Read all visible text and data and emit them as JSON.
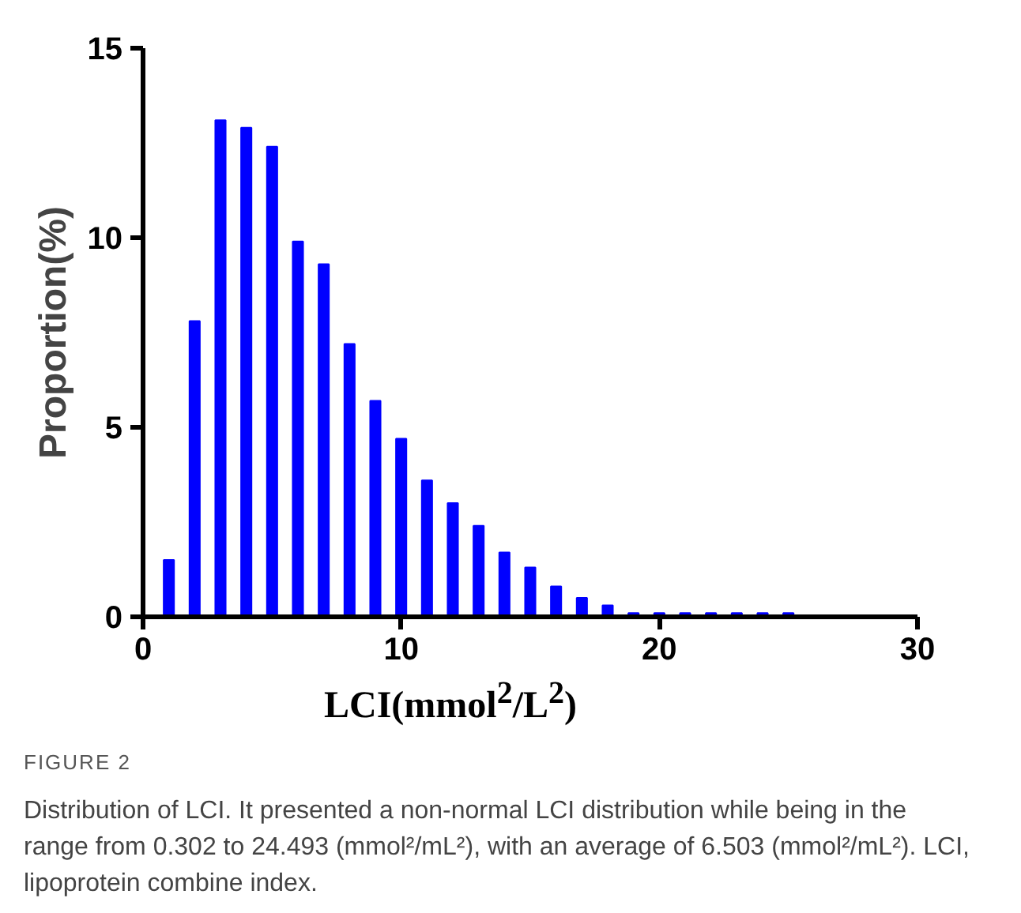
{
  "chart_data": {
    "type": "bar",
    "xlabel": "LCI(mmol$^{2}$/L$^{2}$)",
    "ylabel": "Proportion(%)",
    "x": [
      1,
      2,
      3,
      4,
      5,
      6,
      7,
      8,
      9,
      10,
      11,
      12,
      13,
      14,
      15,
      16,
      17,
      18,
      19,
      20,
      21,
      22,
      23,
      24,
      25
    ],
    "values": [
      1.5,
      7.8,
      13.1,
      12.9,
      12.4,
      9.9,
      9.3,
      7.2,
      5.7,
      4.7,
      3.6,
      3.0,
      2.4,
      1.7,
      1.3,
      0.8,
      0.5,
      0.3,
      0.1,
      0.1,
      0.1,
      0.1,
      0.1,
      0.1,
      0.1
    ],
    "color": "#0000ff",
    "xlim": [
      0,
      30
    ],
    "ylim": [
      0,
      15
    ],
    "xticks": [
      0,
      10,
      20,
      30
    ],
    "yticks": [
      0,
      5,
      10,
      15
    ],
    "grid": false,
    "annotations": [
      "FIGURE 2",
      "Distribution of LCI. It presented a non-normal LCI distribution while being in the range from 0.302 to 24.493 (mmol²/mL²), with an average of 6.503 (mmol²/mL²). LCI, lipoprotein combine index."
    ]
  }
}
